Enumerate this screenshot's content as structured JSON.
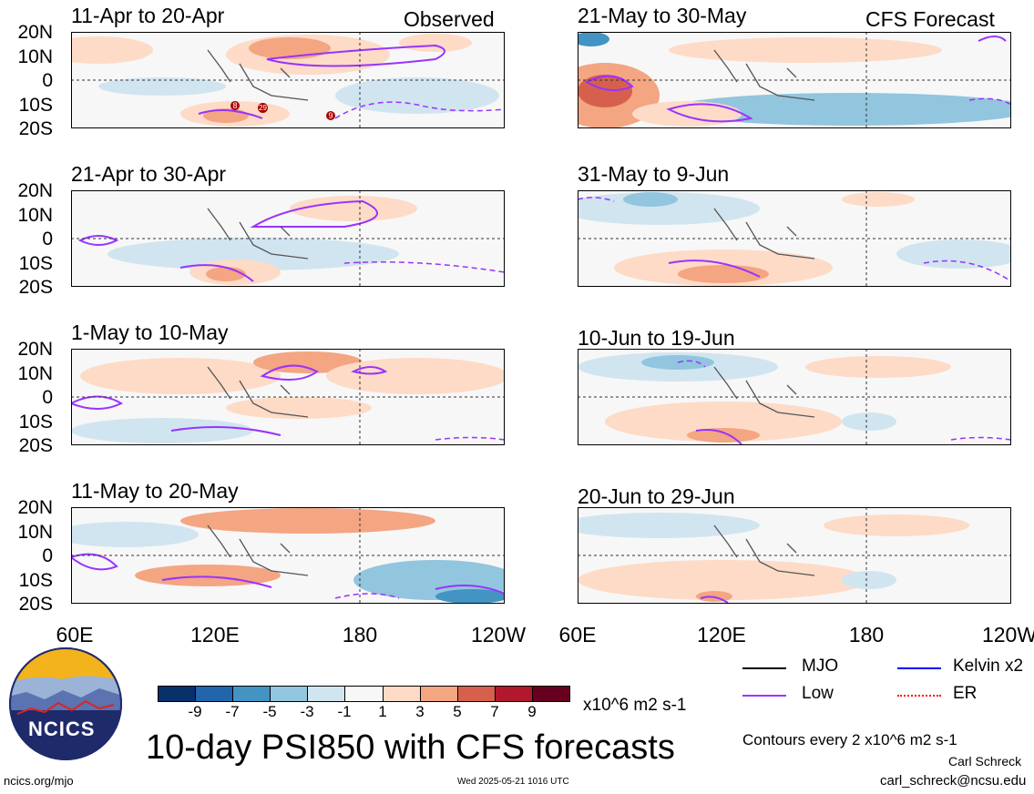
{
  "header_observed": "Observed",
  "header_forecast": "CFS Forecast",
  "panels": [
    {
      "title": "11-Apr to 20-Apr"
    },
    {
      "title": "21-Apr to 30-Apr"
    },
    {
      "title": "1-May to 10-May"
    },
    {
      "title": "11-May to 20-May"
    },
    {
      "title": "21-May to 30-May"
    },
    {
      "title": "31-May to 9-Jun"
    },
    {
      "title": "10-Jun to 19-Jun"
    },
    {
      "title": "20-Jun to 29-Jun"
    }
  ],
  "lat_labels": [
    "20N",
    "10N",
    "0",
    "10S",
    "20S"
  ],
  "lon_labels": [
    "60E",
    "120E",
    "180",
    "120W"
  ],
  "storm_markers": [
    "8",
    "29",
    "9"
  ],
  "colorbar": {
    "colors": [
      "#08306b",
      "#2166ac",
      "#4393c3",
      "#92c5de",
      "#d1e5f0",
      "#f7f7f7",
      "#fddbc7",
      "#f4a582",
      "#d6604d",
      "#b2182b",
      "#67001f"
    ],
    "labels": [
      "-9",
      "-7",
      "-5",
      "-3",
      "-1",
      "1",
      "3",
      "5",
      "7",
      "9"
    ],
    "units": "x10^6 m2 s-1"
  },
  "legend": [
    {
      "label": "MJO",
      "color": "#000000"
    },
    {
      "label": "Kelvin x2",
      "color": "#0000ff"
    },
    {
      "label": "Low",
      "color": "#9933ff"
    },
    {
      "label": "ER",
      "color": "#ff0000"
    }
  ],
  "contour_note": "Contours every 2 x10^6 m2 s-1",
  "main_title": "10-day PSI850 with CFS forecasts",
  "logo_text": "NCICS",
  "footer_left": "ncics.org/mjo",
  "footer_center": "Wed 2025-05-21 1016 UTC",
  "author": "Carl Schreck",
  "email": "carl_schreck@ncsu.edu"
}
